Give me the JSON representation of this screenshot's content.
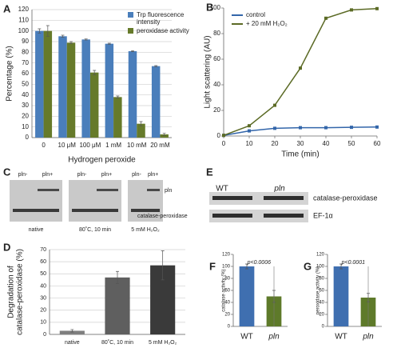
{
  "chart_data": [
    {
      "panel": "A",
      "type": "bar",
      "categories": [
        "0",
        "10 μM",
        "100 μM",
        "1 mM",
        "10 mM",
        "20 mM"
      ],
      "series": [
        {
          "name": "Trp fluorescence intensity",
          "color": "#4a7ebb",
          "values": [
            100,
            95,
            92,
            88,
            81,
            67
          ],
          "errors": [
            2,
            1,
            0.5,
            0.5,
            0.5,
            0.5
          ]
        },
        {
          "name": "peroxidase activity",
          "color": "#667a2a",
          "values": [
            100,
            89,
            61,
            38,
            13,
            3
          ],
          "errors": [
            5,
            1,
            2,
            1,
            2,
            1
          ]
        }
      ],
      "xlabel": "Hydrogen peroxide",
      "ylabel": "Percentage (%)",
      "ylim": [
        0,
        120
      ],
      "yticks": [
        0,
        10,
        20,
        30,
        40,
        50,
        60,
        70,
        80,
        90,
        100,
        110,
        120
      ],
      "grid": true
    },
    {
      "panel": "B",
      "type": "line",
      "x": [
        0,
        10,
        20,
        30,
        40,
        50,
        60
      ],
      "series": [
        {
          "name": "control",
          "color": "#3366aa",
          "values": [
            0.5,
            4,
            6,
            6.5,
            6.5,
            6.8,
            7
          ]
        },
        {
          "name": "+ 20 mM H₂O₂",
          "color": "#5c6b26",
          "values": [
            0.5,
            8,
            24,
            53,
            92,
            98.5,
            99.5
          ]
        }
      ],
      "xlabel": "Time (min)",
      "ylabel": "Light scattering (AU)",
      "xlim": [
        0,
        60
      ],
      "xticks": [
        0,
        10,
        20,
        30,
        40,
        50,
        60
      ],
      "ylim": [
        0,
        100
      ],
      "yticks": [
        0,
        20,
        40,
        60,
        80,
        100
      ],
      "grid": false,
      "legend": "upper left"
    },
    {
      "panel": "D",
      "type": "bar",
      "categories": [
        "native",
        "80˚C, 10 min",
        "5 mM H₂O₂"
      ],
      "values": [
        3,
        47,
        57
      ],
      "errors": [
        1,
        5,
        12
      ],
      "colors": [
        "#7f7f7f",
        "#5f5f5f",
        "#3a3a3a"
      ],
      "ylabel": [
        "Degradation of",
        "catalase-peroxidase (%)"
      ],
      "ylim": [
        0,
        70
      ],
      "yticks": [
        0,
        10,
        20,
        30,
        40,
        50,
        60,
        70
      ],
      "grid": true
    },
    {
      "panel": "F",
      "type": "bar",
      "categories": [
        "WT",
        "pln"
      ],
      "values": [
        100,
        50
      ],
      "errors": [
        4,
        10
      ],
      "colors": [
        "#3f6fb0",
        "#5e7a2a"
      ],
      "ylabel": "catalase activity (%)",
      "annotation": "p<0.0006",
      "ylim": [
        0,
        120
      ],
      "yticks": [
        0,
        20,
        40,
        60,
        80,
        100,
        120
      ],
      "grid": false
    },
    {
      "panel": "G",
      "type": "bar",
      "categories": [
        "WT",
        "pln"
      ],
      "values": [
        100,
        48
      ],
      "errors": [
        4,
        7
      ],
      "colors": [
        "#3f6fb0",
        "#5e7a2a"
      ],
      "ylabel": "peroxidase activity (%)",
      "annotation": "p<0.0001",
      "ylim": [
        0,
        120
      ],
      "yticks": [
        0,
        20,
        40,
        60,
        80,
        100,
        120
      ],
      "grid": false
    }
  ],
  "gels": [
    {
      "panel": "C",
      "lanes": [
        "pln-",
        "pln+",
        "pln-",
        "pln+",
        "pln-",
        "pln+"
      ],
      "bands": [
        "pln",
        "catalase-peroxidase"
      ],
      "conditions": [
        "native",
        "80˚C, 10 min",
        "5 mM H₂O₂"
      ]
    },
    {
      "panel": "E",
      "lanes": [
        "WT",
        "pln"
      ],
      "bands": [
        "catalase-peroxidase",
        "EF-1α"
      ]
    }
  ]
}
